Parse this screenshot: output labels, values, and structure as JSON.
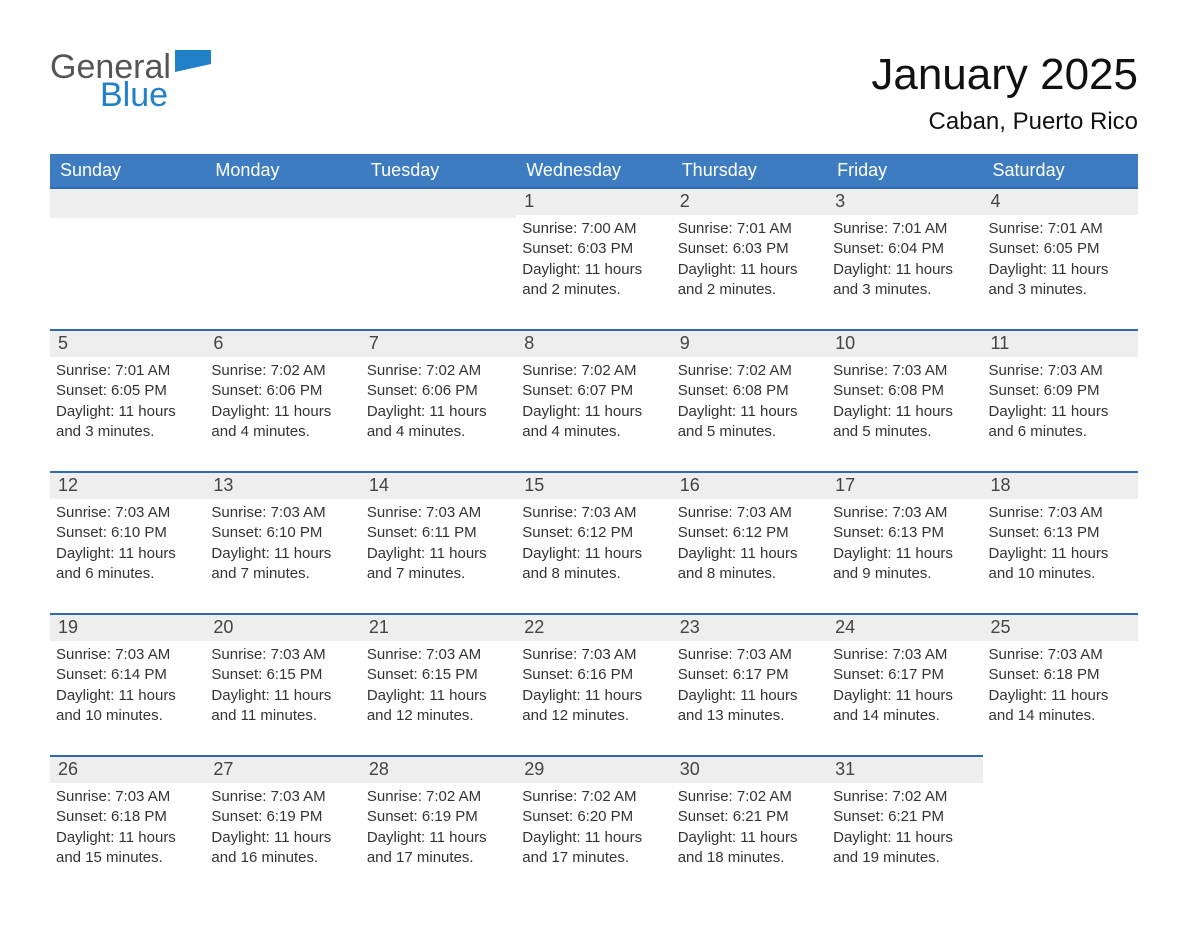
{
  "logo": {
    "general": "General",
    "blue": "Blue",
    "flag_color": "#2080c8"
  },
  "title": "January 2025",
  "location": "Caban, Puerto Rico",
  "colors": {
    "header_blue": "#3d7cc0",
    "cell_border": "#2f6aad",
    "daynum_bg": "#eeeeee",
    "text": "#333333"
  },
  "weekdays": [
    "Sunday",
    "Monday",
    "Tuesday",
    "Wednesday",
    "Thursday",
    "Friday",
    "Saturday"
  ],
  "leading_blanks": 3,
  "days": [
    {
      "n": 1,
      "sunrise": "7:00 AM",
      "sunset": "6:03 PM",
      "daylight": "11 hours and 2 minutes."
    },
    {
      "n": 2,
      "sunrise": "7:01 AM",
      "sunset": "6:03 PM",
      "daylight": "11 hours and 2 minutes."
    },
    {
      "n": 3,
      "sunrise": "7:01 AM",
      "sunset": "6:04 PM",
      "daylight": "11 hours and 3 minutes."
    },
    {
      "n": 4,
      "sunrise": "7:01 AM",
      "sunset": "6:05 PM",
      "daylight": "11 hours and 3 minutes."
    },
    {
      "n": 5,
      "sunrise": "7:01 AM",
      "sunset": "6:05 PM",
      "daylight": "11 hours and 3 minutes."
    },
    {
      "n": 6,
      "sunrise": "7:02 AM",
      "sunset": "6:06 PM",
      "daylight": "11 hours and 4 minutes."
    },
    {
      "n": 7,
      "sunrise": "7:02 AM",
      "sunset": "6:06 PM",
      "daylight": "11 hours and 4 minutes."
    },
    {
      "n": 8,
      "sunrise": "7:02 AM",
      "sunset": "6:07 PM",
      "daylight": "11 hours and 4 minutes."
    },
    {
      "n": 9,
      "sunrise": "7:02 AM",
      "sunset": "6:08 PM",
      "daylight": "11 hours and 5 minutes."
    },
    {
      "n": 10,
      "sunrise": "7:03 AM",
      "sunset": "6:08 PM",
      "daylight": "11 hours and 5 minutes."
    },
    {
      "n": 11,
      "sunrise": "7:03 AM",
      "sunset": "6:09 PM",
      "daylight": "11 hours and 6 minutes."
    },
    {
      "n": 12,
      "sunrise": "7:03 AM",
      "sunset": "6:10 PM",
      "daylight": "11 hours and 6 minutes."
    },
    {
      "n": 13,
      "sunrise": "7:03 AM",
      "sunset": "6:10 PM",
      "daylight": "11 hours and 7 minutes."
    },
    {
      "n": 14,
      "sunrise": "7:03 AM",
      "sunset": "6:11 PM",
      "daylight": "11 hours and 7 minutes."
    },
    {
      "n": 15,
      "sunrise": "7:03 AM",
      "sunset": "6:12 PM",
      "daylight": "11 hours and 8 minutes."
    },
    {
      "n": 16,
      "sunrise": "7:03 AM",
      "sunset": "6:12 PM",
      "daylight": "11 hours and 8 minutes."
    },
    {
      "n": 17,
      "sunrise": "7:03 AM",
      "sunset": "6:13 PM",
      "daylight": "11 hours and 9 minutes."
    },
    {
      "n": 18,
      "sunrise": "7:03 AM",
      "sunset": "6:13 PM",
      "daylight": "11 hours and 10 minutes."
    },
    {
      "n": 19,
      "sunrise": "7:03 AM",
      "sunset": "6:14 PM",
      "daylight": "11 hours and 10 minutes."
    },
    {
      "n": 20,
      "sunrise": "7:03 AM",
      "sunset": "6:15 PM",
      "daylight": "11 hours and 11 minutes."
    },
    {
      "n": 21,
      "sunrise": "7:03 AM",
      "sunset": "6:15 PM",
      "daylight": "11 hours and 12 minutes."
    },
    {
      "n": 22,
      "sunrise": "7:03 AM",
      "sunset": "6:16 PM",
      "daylight": "11 hours and 12 minutes."
    },
    {
      "n": 23,
      "sunrise": "7:03 AM",
      "sunset": "6:17 PM",
      "daylight": "11 hours and 13 minutes."
    },
    {
      "n": 24,
      "sunrise": "7:03 AM",
      "sunset": "6:17 PM",
      "daylight": "11 hours and 14 minutes."
    },
    {
      "n": 25,
      "sunrise": "7:03 AM",
      "sunset": "6:18 PM",
      "daylight": "11 hours and 14 minutes."
    },
    {
      "n": 26,
      "sunrise": "7:03 AM",
      "sunset": "6:18 PM",
      "daylight": "11 hours and 15 minutes."
    },
    {
      "n": 27,
      "sunrise": "7:03 AM",
      "sunset": "6:19 PM",
      "daylight": "11 hours and 16 minutes."
    },
    {
      "n": 28,
      "sunrise": "7:02 AM",
      "sunset": "6:19 PM",
      "daylight": "11 hours and 17 minutes."
    },
    {
      "n": 29,
      "sunrise": "7:02 AM",
      "sunset": "6:20 PM",
      "daylight": "11 hours and 17 minutes."
    },
    {
      "n": 30,
      "sunrise": "7:02 AM",
      "sunset": "6:21 PM",
      "daylight": "11 hours and 18 minutes."
    },
    {
      "n": 31,
      "sunrise": "7:02 AM",
      "sunset": "6:21 PM",
      "daylight": "11 hours and 19 minutes."
    }
  ],
  "labels": {
    "sunrise": "Sunrise",
    "sunset": "Sunset",
    "daylight": "Daylight"
  }
}
